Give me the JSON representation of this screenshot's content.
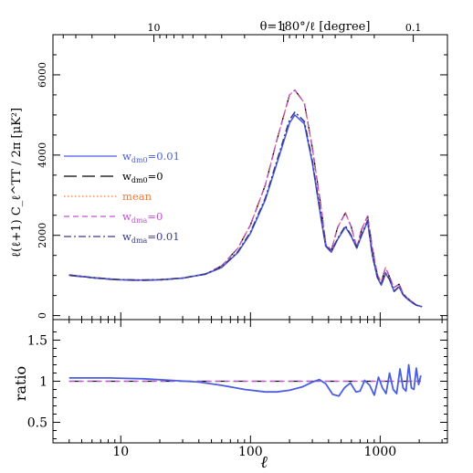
{
  "chart_data": [
    {
      "type": "line",
      "panel": "top",
      "x_scale": "log",
      "xlim": [
        3,
        3300
      ],
      "ylim": [
        -100,
        7000
      ],
      "top_axis": {
        "label": "θ=180°/ℓ  [degree]",
        "ticks": [
          {
            "label": "10",
            "ell": 18
          },
          {
            "label": "1",
            "ell": 180
          },
          {
            "label": "0.1",
            "ell": 1800
          }
        ]
      },
      "y_ticks": [
        "0",
        "2000",
        "4000",
        "6000"
      ],
      "ylabel": "ℓ(ℓ+1) C_ℓ^TT / 2π [μK²]",
      "series": [
        {
          "name": "w_dm0=0.01",
          "color": "#4a5ee0",
          "dash": "solid",
          "x": [
            4,
            6,
            8,
            10,
            14,
            20,
            30,
            45,
            60,
            80,
            100,
            130,
            160,
            200,
            220,
            260,
            300,
            350,
            380,
            420,
            470,
            540,
            600,
            660,
            720,
            800,
            870,
            950,
            1020,
            1100,
            1180,
            1280,
            1400,
            1500,
            1600,
            1750,
            1900,
            2100
          ],
          "y": [
            1010,
            950,
            915,
            895,
            885,
            895,
            935,
            1030,
            1200,
            1570,
            2050,
            2880,
            3800,
            4800,
            5000,
            4780,
            3800,
            2420,
            1730,
            1580,
            1900,
            2210,
            1970,
            1680,
            2000,
            2350,
            1500,
            950,
            760,
            1050,
            900,
            600,
            720,
            520,
            430,
            330,
            260,
            220
          ]
        },
        {
          "name": "w_dm0=0",
          "color": "#000000",
          "dash": "long-dash",
          "x": [
            4,
            6,
            8,
            10,
            14,
            20,
            30,
            45,
            60,
            80,
            100,
            130,
            160,
            200,
            220,
            260,
            300,
            350,
            380,
            420,
            470,
            540,
            600,
            660,
            720,
            800,
            870,
            950,
            1020,
            1100,
            1180,
            1280,
            1400,
            1500,
            1600,
            1750,
            1900,
            2100
          ],
          "y": [
            1000,
            940,
            905,
            885,
            875,
            885,
            930,
            1040,
            1240,
            1680,
            2260,
            3250,
            4380,
            5500,
            5620,
            5300,
            4180,
            2700,
            1800,
            1620,
            2200,
            2560,
            2200,
            1700,
            2150,
            2480,
            1680,
            1020,
            830,
            1200,
            960,
            700,
            780,
            560,
            450,
            350,
            270,
            220
          ]
        },
        {
          "name": "mean",
          "color": "#f07a3a",
          "dash": "dotted",
          "x": [
            4,
            6,
            8,
            10,
            14,
            20,
            30,
            45,
            60,
            80,
            100,
            130,
            160,
            200,
            220,
            260,
            300,
            350,
            380,
            420,
            470,
            540,
            600,
            660,
            720,
            800,
            870,
            950,
            1020,
            1100,
            1180,
            1280,
            1400,
            1500,
            1600,
            1750,
            1900,
            2100
          ],
          "y": [
            1000,
            940,
            905,
            885,
            875,
            885,
            930,
            1040,
            1240,
            1680,
            2260,
            3250,
            4380,
            5500,
            5620,
            5300,
            4180,
            2700,
            1800,
            1620,
            2200,
            2560,
            2200,
            1700,
            2150,
            2480,
            1680,
            1020,
            830,
            1200,
            960,
            700,
            780,
            560,
            450,
            350,
            270,
            220
          ]
        },
        {
          "name": "w_dma=0",
          "color": "#c050d0",
          "dash": "dashed",
          "x": [
            4,
            6,
            8,
            10,
            14,
            20,
            30,
            45,
            60,
            80,
            100,
            130,
            160,
            200,
            220,
            260,
            300,
            350,
            380,
            420,
            470,
            540,
            600,
            660,
            720,
            800,
            870,
            950,
            1020,
            1100,
            1180,
            1280,
            1400,
            1500,
            1600,
            1750,
            1900,
            2100
          ],
          "y": [
            1000,
            940,
            905,
            885,
            875,
            885,
            930,
            1040,
            1240,
            1680,
            2260,
            3250,
            4380,
            5500,
            5620,
            5300,
            4180,
            2700,
            1800,
            1620,
            2200,
            2560,
            2200,
            1700,
            2150,
            2480,
            1680,
            1020,
            830,
            1200,
            960,
            700,
            780,
            560,
            450,
            350,
            270,
            220
          ]
        },
        {
          "name": "w_dma=0.01",
          "color": "#3a3a8a",
          "dash": "dash-dot",
          "x": [
            4,
            6,
            8,
            10,
            14,
            20,
            30,
            45,
            60,
            80,
            100,
            130,
            160,
            200,
            220,
            260,
            300,
            350,
            380,
            420,
            470,
            540,
            600,
            660,
            720,
            800,
            870,
            950,
            1020,
            1100,
            1180,
            1280,
            1400,
            1500,
            1600,
            1750,
            1900,
            2100
          ],
          "y": [
            1010,
            950,
            915,
            895,
            885,
            895,
            935,
            1035,
            1210,
            1590,
            2080,
            2920,
            3860,
            4880,
            5070,
            4840,
            3850,
            2450,
            1740,
            1590,
            1920,
            2240,
            1990,
            1690,
            2020,
            2370,
            1510,
            960,
            770,
            1060,
            905,
            605,
            725,
            525,
            435,
            335,
            262,
            221
          ]
        }
      ],
      "legend": {
        "placement": "left",
        "entries": [
          {
            "prefix": "w",
            "sub": "dm0",
            "suffix": "=0.01",
            "color": "#4a5ee0"
          },
          {
            "prefix": "w",
            "sub": "dm0",
            "suffix": "=0",
            "color": "#000000"
          },
          {
            "prefix": "mean",
            "sub": "",
            "suffix": "",
            "color": "#f07a3a"
          },
          {
            "prefix": "w",
            "sub": "dma",
            "suffix": "=0",
            "color": "#c050d0"
          },
          {
            "prefix": "w",
            "sub": "dma",
            "suffix": "=0.01",
            "color": "#3a3a8a"
          }
        ]
      }
    },
    {
      "type": "line",
      "panel": "bottom",
      "x_scale": "log",
      "xlim": [
        3,
        3300
      ],
      "ylim": [
        0.25,
        1.75
      ],
      "xlabel": "ℓ",
      "ylabel": "ratio",
      "x_ticks": [
        "10",
        "100",
        "1000"
      ],
      "y_ticks": [
        "0.5",
        "1",
        "1.5"
      ],
      "series": [
        {
          "name": "w_dm0=0.01 / mean",
          "color": "#4a5ee0",
          "x": [
            4,
            8,
            15,
            25,
            40,
            60,
            90,
            130,
            160,
            200,
            250,
            300,
            340,
            380,
            430,
            480,
            530,
            590,
            650,
            700,
            760,
            830,
            900,
            970,
            1040,
            1110,
            1180,
            1260,
            1340,
            1420,
            1500,
            1580,
            1660,
            1740,
            1820,
            1900,
            1980,
            2060
          ],
          "y": [
            1.04,
            1.04,
            1.03,
            1.01,
            0.99,
            0.95,
            0.9,
            0.87,
            0.87,
            0.89,
            0.93,
            0.99,
            1.02,
            0.97,
            0.84,
            0.82,
            0.92,
            0.98,
            0.87,
            0.88,
            1.01,
            0.95,
            0.83,
            1.05,
            0.92,
            0.85,
            1.1,
            0.9,
            0.85,
            1.15,
            0.92,
            0.88,
            1.2,
            0.92,
            0.9,
            1.16,
            0.96,
            1.07
          ]
        },
        {
          "name": "w_dm0=0 / mean",
          "color": "#000000",
          "x": [
            4,
            100,
            300,
            600,
            1000,
            1500,
            2060
          ],
          "y": [
            1.0,
            1.0,
            1.0,
            1.0,
            1.0,
            1.0,
            1.0
          ]
        },
        {
          "name": "w_dma=0 / mean",
          "color": "#c050d0",
          "x": [
            4,
            100,
            300,
            600,
            1000,
            1500,
            2060
          ],
          "y": [
            1.0,
            1.0,
            1.0,
            1.0,
            1.0,
            1.0,
            1.0
          ]
        }
      ]
    }
  ]
}
